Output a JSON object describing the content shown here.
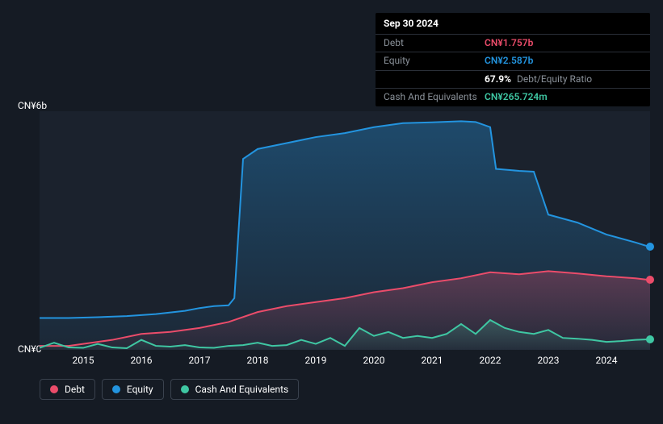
{
  "tooltip": {
    "date": "Sep 30 2024",
    "rows": {
      "debt": {
        "label": "Debt",
        "value": "CN¥1.757b",
        "color": "#eb4c6a"
      },
      "equity": {
        "label": "Equity",
        "value": "CN¥2.587b",
        "color": "#2394df"
      },
      "ratio": {
        "label": "",
        "pct": "67.9%",
        "suffix": "Debt/Equity Ratio"
      },
      "cash": {
        "label": "Cash And Equivalents",
        "value": "CN¥265.724m",
        "color": "#3fc7a3"
      }
    }
  },
  "chart": {
    "type": "area",
    "background_color": "#1b222d",
    "page_background": "#151b24",
    "grid_color": "#2a2f38",
    "ylim": [
      0,
      6
    ],
    "y_unit_prefix": "CN¥",
    "y_unit_suffix": "b",
    "y_ticks": [
      {
        "v": 0,
        "label": "CN¥0"
      },
      {
        "v": 6,
        "label": "CN¥6b"
      }
    ],
    "x_years": [
      2015,
      2016,
      2017,
      2018,
      2019,
      2020,
      2021,
      2022,
      2023,
      2024
    ],
    "x_range": [
      2014.25,
      2024.75
    ],
    "series": {
      "equity": {
        "label": "Equity",
        "color": "#2394df",
        "fill_opacity_top": 0.35,
        "fill_opacity_bottom": 0.05,
        "line_width": 2,
        "points": [
          [
            2014.25,
            0.8
          ],
          [
            2014.75,
            0.8
          ],
          [
            2015.25,
            0.82
          ],
          [
            2015.75,
            0.85
          ],
          [
            2016.25,
            0.9
          ],
          [
            2016.75,
            0.98
          ],
          [
            2017.0,
            1.05
          ],
          [
            2017.25,
            1.1
          ],
          [
            2017.5,
            1.12
          ],
          [
            2017.6,
            1.3
          ],
          [
            2017.75,
            4.8
          ],
          [
            2018.0,
            5.05
          ],
          [
            2018.5,
            5.2
          ],
          [
            2019.0,
            5.35
          ],
          [
            2019.5,
            5.45
          ],
          [
            2020.0,
            5.6
          ],
          [
            2020.5,
            5.7
          ],
          [
            2021.0,
            5.72
          ],
          [
            2021.5,
            5.75
          ],
          [
            2021.75,
            5.73
          ],
          [
            2022.0,
            5.6
          ],
          [
            2022.1,
            4.55
          ],
          [
            2022.5,
            4.5
          ],
          [
            2022.75,
            4.48
          ],
          [
            2023.0,
            3.4
          ],
          [
            2023.5,
            3.2
          ],
          [
            2024.0,
            2.9
          ],
          [
            2024.5,
            2.7
          ],
          [
            2024.75,
            2.587
          ]
        ]
      },
      "debt": {
        "label": "Debt",
        "color": "#eb4c6a",
        "fill_opacity_top": 0.3,
        "fill_opacity_bottom": 0.04,
        "line_width": 2,
        "points": [
          [
            2014.25,
            0.1
          ],
          [
            2014.75,
            0.1
          ],
          [
            2015.0,
            0.15
          ],
          [
            2015.5,
            0.25
          ],
          [
            2016.0,
            0.4
          ],
          [
            2016.5,
            0.45
          ],
          [
            2017.0,
            0.55
          ],
          [
            2017.5,
            0.7
          ],
          [
            2018.0,
            0.95
          ],
          [
            2018.5,
            1.1
          ],
          [
            2019.0,
            1.2
          ],
          [
            2019.5,
            1.3
          ],
          [
            2020.0,
            1.45
          ],
          [
            2020.5,
            1.55
          ],
          [
            2021.0,
            1.7
          ],
          [
            2021.5,
            1.8
          ],
          [
            2022.0,
            1.95
          ],
          [
            2022.5,
            1.9
          ],
          [
            2023.0,
            1.98
          ],
          [
            2023.5,
            1.92
          ],
          [
            2024.0,
            1.85
          ],
          [
            2024.5,
            1.8
          ],
          [
            2024.75,
            1.757
          ]
        ]
      },
      "cash": {
        "label": "Cash And Equivalents",
        "color": "#3fc7a3",
        "fill_opacity_top": 0.25,
        "fill_opacity_bottom": 0.03,
        "line_width": 2,
        "points": [
          [
            2014.25,
            0.05
          ],
          [
            2014.5,
            0.18
          ],
          [
            2014.75,
            0.06
          ],
          [
            2015.0,
            0.05
          ],
          [
            2015.25,
            0.15
          ],
          [
            2015.5,
            0.06
          ],
          [
            2015.75,
            0.04
          ],
          [
            2016.0,
            0.25
          ],
          [
            2016.25,
            0.1
          ],
          [
            2016.5,
            0.08
          ],
          [
            2016.75,
            0.12
          ],
          [
            2017.0,
            0.06
          ],
          [
            2017.25,
            0.05
          ],
          [
            2017.5,
            0.1
          ],
          [
            2017.75,
            0.12
          ],
          [
            2018.0,
            0.18
          ],
          [
            2018.25,
            0.1
          ],
          [
            2018.5,
            0.12
          ],
          [
            2018.75,
            0.25
          ],
          [
            2019.0,
            0.15
          ],
          [
            2019.25,
            0.3
          ],
          [
            2019.5,
            0.1
          ],
          [
            2019.75,
            0.55
          ],
          [
            2020.0,
            0.35
          ],
          [
            2020.25,
            0.45
          ],
          [
            2020.5,
            0.3
          ],
          [
            2020.75,
            0.35
          ],
          [
            2021.0,
            0.3
          ],
          [
            2021.25,
            0.4
          ],
          [
            2021.5,
            0.65
          ],
          [
            2021.75,
            0.4
          ],
          [
            2022.0,
            0.75
          ],
          [
            2022.25,
            0.55
          ],
          [
            2022.5,
            0.45
          ],
          [
            2022.75,
            0.4
          ],
          [
            2023.0,
            0.5
          ],
          [
            2023.25,
            0.3
          ],
          [
            2023.5,
            0.28
          ],
          [
            2023.75,
            0.25
          ],
          [
            2024.0,
            0.2
          ],
          [
            2024.25,
            0.22
          ],
          [
            2024.5,
            0.25
          ],
          [
            2024.75,
            0.266
          ]
        ]
      }
    },
    "end_markers": [
      {
        "series": "equity",
        "x": 2024.75,
        "y": 2.587,
        "color": "#2394df"
      },
      {
        "series": "debt",
        "x": 2024.75,
        "y": 1.757,
        "color": "#eb4c6a"
      },
      {
        "series": "cash",
        "x": 2024.75,
        "y": 0.266,
        "color": "#3fc7a3"
      }
    ],
    "legend": {
      "border_color": "#3a424e",
      "text_color": "#ffffff",
      "fontsize": 12,
      "items": [
        {
          "key": "debt",
          "label": "Debt",
          "color": "#eb4c6a"
        },
        {
          "key": "equity",
          "label": "Equity",
          "color": "#2394df"
        },
        {
          "key": "cash",
          "label": "Cash And Equivalents",
          "color": "#3fc7a3"
        }
      ]
    },
    "axis_label_color": "#ffffff",
    "axis_fontsize": 12
  }
}
